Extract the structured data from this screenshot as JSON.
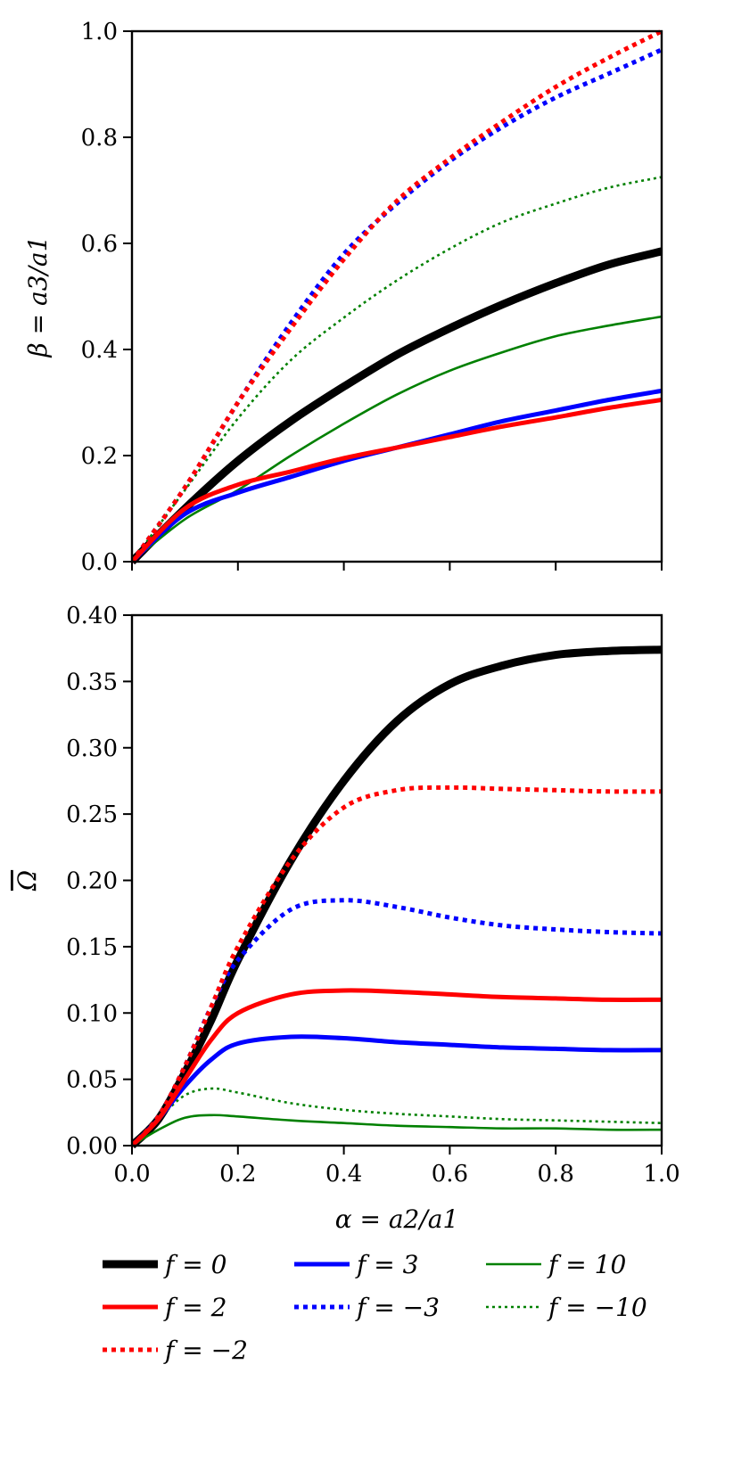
{
  "chart_data": [
    {
      "type": "line",
      "panel": "top",
      "xlabel": "",
      "ylabel": "β = a3/a1",
      "xlim": [
        0,
        1
      ],
      "ylim": [
        0,
        1
      ],
      "xticks": [
        "",
        "",
        "",
        "",
        "",
        ""
      ],
      "yticks": [
        "0.0",
        "0.2",
        "0.4",
        "0.6",
        "0.8",
        "1.0"
      ],
      "x": [
        0,
        0.1,
        0.2,
        0.3,
        0.4,
        0.5,
        0.6,
        0.7,
        0.8,
        0.9,
        1.0
      ],
      "series": [
        {
          "name": "f = 0",
          "color": "#000000",
          "style": "solid",
          "width": "thick",
          "values": [
            0,
            0.1,
            0.19,
            0.265,
            0.33,
            0.39,
            0.44,
            0.485,
            0.525,
            0.56,
            0.585
          ]
        },
        {
          "name": "f = 2",
          "color": "#ff0000",
          "style": "solid",
          "width": "medium",
          "values": [
            0,
            0.1,
            0.145,
            0.17,
            0.195,
            0.215,
            0.235,
            0.255,
            0.272,
            0.29,
            0.305
          ]
        },
        {
          "name": "f = -2",
          "color": "#ff0000",
          "style": "dotted",
          "width": "medium",
          "values": [
            0,
            0.14,
            0.3,
            0.44,
            0.57,
            0.68,
            0.76,
            0.83,
            0.895,
            0.95,
            1.0
          ]
        },
        {
          "name": "f = 3",
          "color": "#0000ff",
          "style": "solid",
          "width": "medium",
          "values": [
            0,
            0.09,
            0.13,
            0.16,
            0.19,
            0.215,
            0.24,
            0.265,
            0.285,
            0.305,
            0.322
          ]
        },
        {
          "name": "f = -3",
          "color": "#0000ff",
          "style": "dotted",
          "width": "medium",
          "values": [
            0,
            0.14,
            0.3,
            0.45,
            0.58,
            0.675,
            0.755,
            0.82,
            0.875,
            0.92,
            0.965
          ]
        },
        {
          "name": "f = 10",
          "color": "#008000",
          "style": "solid",
          "width": "thin",
          "values": [
            0,
            0.08,
            0.135,
            0.2,
            0.26,
            0.315,
            0.36,
            0.395,
            0.425,
            0.445,
            0.462
          ]
        },
        {
          "name": "f = -10",
          "color": "#008000",
          "style": "dotted",
          "width": "thin",
          "values": [
            0,
            0.135,
            0.27,
            0.38,
            0.46,
            0.53,
            0.59,
            0.64,
            0.675,
            0.705,
            0.725
          ]
        }
      ]
    },
    {
      "type": "line",
      "panel": "bottom",
      "xlabel": "α = a2/a1",
      "ylabel": "Ω",
      "xlim": [
        0,
        1
      ],
      "ylim": [
        0,
        0.4
      ],
      "xticks": [
        "0.0",
        "0.2",
        "0.4",
        "0.6",
        "0.8",
        "1.0"
      ],
      "yticks": [
        "0.00",
        "0.05",
        "0.10",
        "0.15",
        "0.20",
        "0.25",
        "0.30",
        "0.35",
        "0.40"
      ],
      "x": [
        0,
        0.05,
        0.1,
        0.15,
        0.2,
        0.3,
        0.4,
        0.5,
        0.6,
        0.7,
        0.8,
        0.9,
        1.0
      ],
      "series": [
        {
          "name": "f = 0",
          "color": "#000000",
          "style": "solid",
          "width": "thick",
          "values": [
            0,
            0.02,
            0.055,
            0.095,
            0.14,
            0.215,
            0.275,
            0.32,
            0.348,
            0.362,
            0.37,
            0.373,
            0.374
          ]
        },
        {
          "name": "f = 2",
          "color": "#ff0000",
          "style": "solid",
          "width": "medium",
          "values": [
            0,
            0.02,
            0.05,
            0.08,
            0.1,
            0.114,
            0.117,
            0.116,
            0.114,
            0.112,
            0.111,
            0.11,
            0.11
          ]
        },
        {
          "name": "f = -2",
          "color": "#ff0000",
          "style": "dotted",
          "width": "medium",
          "values": [
            0,
            0.022,
            0.06,
            0.105,
            0.15,
            0.215,
            0.255,
            0.268,
            0.27,
            0.269,
            0.268,
            0.267,
            0.267
          ]
        },
        {
          "name": "f = 3",
          "color": "#0000ff",
          "style": "solid",
          "width": "medium",
          "values": [
            0,
            0.02,
            0.045,
            0.065,
            0.077,
            0.082,
            0.081,
            0.078,
            0.076,
            0.074,
            0.073,
            0.072,
            0.072
          ]
        },
        {
          "name": "f = -3",
          "color": "#0000ff",
          "style": "dotted",
          "width": "medium",
          "values": [
            0,
            0.022,
            0.06,
            0.105,
            0.14,
            0.178,
            0.185,
            0.18,
            0.172,
            0.166,
            0.163,
            0.161,
            0.16
          ]
        },
        {
          "name": "f = 10",
          "color": "#008000",
          "style": "solid",
          "width": "thin",
          "values": [
            0,
            0.012,
            0.021,
            0.023,
            0.022,
            0.019,
            0.017,
            0.015,
            0.014,
            0.013,
            0.013,
            0.012,
            0.012
          ]
        },
        {
          "name": "f = -10",
          "color": "#008000",
          "style": "dotted",
          "width": "thin",
          "values": [
            0,
            0.02,
            0.038,
            0.043,
            0.04,
            0.032,
            0.027,
            0.024,
            0.022,
            0.02,
            0.019,
            0.018,
            0.017
          ]
        }
      ]
    }
  ],
  "legend": {
    "placement": "bottom",
    "entries": [
      {
        "label": "f = 0",
        "color": "#000000",
        "style": "solid",
        "width": "thick"
      },
      {
        "label": "f = 3",
        "color": "#0000ff",
        "style": "solid",
        "width": "medium"
      },
      {
        "label": "f = 10",
        "color": "#008000",
        "style": "solid",
        "width": "thin"
      },
      {
        "label": "f = 2",
        "color": "#ff0000",
        "style": "solid",
        "width": "medium"
      },
      {
        "label": "f = −3",
        "color": "#0000ff",
        "style": "dotted",
        "width": "medium"
      },
      {
        "label": "f = −10",
        "color": "#008000",
        "style": "dotted",
        "width": "thin"
      },
      {
        "label": "f = −2",
        "color": "#ff0000",
        "style": "dotted",
        "width": "medium"
      }
    ]
  }
}
